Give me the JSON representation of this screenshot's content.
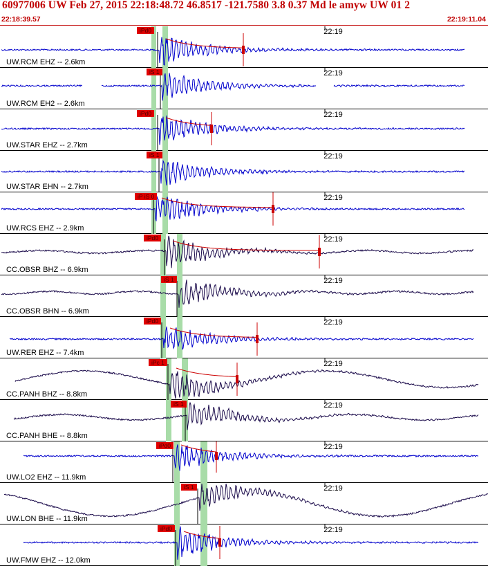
{
  "header": {
    "title": "60977006 UW Feb 27, 2015 22:18:48.72   46.8517 -121.7580  3.8 0.37 Md le amyw UW 01   2",
    "start_time": "22:18:39.57",
    "end_time": "22:19:11.04"
  },
  "colors": {
    "header_text": "#c00000",
    "trace_blue": "#0000cc",
    "trace_navy": "#1a0a4a",
    "pick_flag": "#e00000",
    "pick_window": "#a8dca8",
    "coda_fit": "#cc0000"
  },
  "traces": [
    {
      "label": "UW.RCM EHZ -- 2.6km",
      "time_tick": "22:19",
      "pick": "iPd0",
      "color": "blue"
    },
    {
      "label": "UW.RCM EH2 -- 2.6km",
      "time_tick": "22:19",
      "pick": "iS 1",
      "color": "blue"
    },
    {
      "label": "UW.STAR EHZ -- 2.7km",
      "time_tick": "22:19",
      "pick": "iPd0",
      "color": "blue"
    },
    {
      "label": "UW.STAR EHN -- 2.7km",
      "time_tick": "22:19",
      "pick": "iS 1",
      "color": "blue"
    },
    {
      "label": "UW.RCS EHZ -- 2.9km",
      "time_tick": "22:19",
      "pick": "iP iS 0",
      "color": "blue"
    },
    {
      "label": "CC.OBSR BHZ -- 6.9km",
      "time_tick": "22:19",
      "pick": "iPd0",
      "color": "navy"
    },
    {
      "label": "CC.OBSR BHN -- 6.9km",
      "time_tick": "22:19",
      "pick": "iS 1",
      "color": "navy"
    },
    {
      "label": "UW.RER EHZ -- 7.4km",
      "time_tick": "22:19",
      "pick": "iPd0",
      "color": "blue"
    },
    {
      "label": "CC.PANH BHZ -- 8.8km",
      "time_tick": "22:19",
      "pick": "iPc 1",
      "color": "navy"
    },
    {
      "label": "CC.PANH BHE -- 8.8km",
      "time_tick": "22:19",
      "pick": "iS 1",
      "color": "navy"
    },
    {
      "label": "UW.LO2 EHZ -- 11.9km",
      "time_tick": "22:19",
      "pick": "iPd0",
      "color": "blue"
    },
    {
      "label": "UW.LON BHE -- 11.9km",
      "time_tick": "22:19",
      "pick": "iS 1",
      "color": "navy"
    },
    {
      "label": "UW.FMW EHZ -- 12.0km",
      "time_tick": "22:19",
      "pick": "iPd0",
      "color": "blue"
    }
  ]
}
